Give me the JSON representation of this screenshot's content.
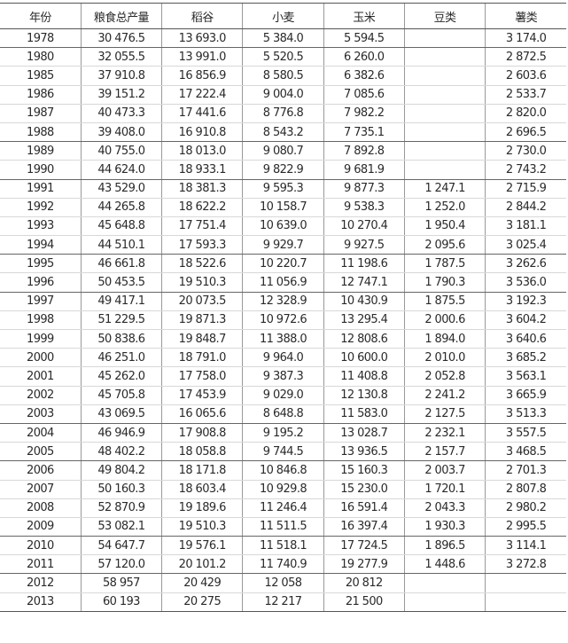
{
  "table": {
    "headers": [
      "年份",
      "粮食总产量",
      "稻谷",
      "小麦",
      "玉米",
      "豆类",
      "薯类"
    ],
    "rows": [
      [
        "1978",
        "30 476.5",
        "13 693.0",
        "5 384.0",
        "5 594.5",
        "",
        "3 174.0"
      ],
      [
        "1980",
        "32 055.5",
        "13 991.0",
        "5 520.5",
        "6 260.0",
        "",
        "2 872.5"
      ],
      [
        "1985",
        "37 910.8",
        "16 856.9",
        "8 580.5",
        "6 382.6",
        "",
        "2 603.6"
      ],
      [
        "1986",
        "39 151.2",
        "17 222.4",
        "9 004.0",
        "7 085.6",
        "",
        "2 533.7"
      ],
      [
        "1987",
        "40 473.3",
        "17 441.6",
        "8 776.8",
        "7 982.2",
        "",
        "2 820.0"
      ],
      [
        "1988",
        "39 408.0",
        "16 910.8",
        "8 543.2",
        "7 735.1",
        "",
        "2 696.5"
      ],
      [
        "1989",
        "40 755.0",
        "18 013.0",
        "9 080.7",
        "7 892.8",
        "",
        "2 730.0"
      ],
      [
        "1990",
        "44 624.0",
        "18 933.1",
        "9 822.9",
        "9 681.9",
        "",
        "2 743.2"
      ],
      [
        "1991",
        "43 529.0",
        "18 381.3",
        "9 595.3",
        "9 877.3",
        "1 247.1",
        "2 715.9"
      ],
      [
        "1992",
        "44 265.8",
        "18 622.2",
        "10 158.7",
        "9 538.3",
        "1 252.0",
        "2 844.2"
      ],
      [
        "1993",
        "45 648.8",
        "17 751.4",
        "10 639.0",
        "10 270.4",
        "1 950.4",
        "3 181.1"
      ],
      [
        "1994",
        "44 510.1",
        "17 593.3",
        "9 929.7",
        "9 927.5",
        "2 095.6",
        "3 025.4"
      ],
      [
        "1995",
        "46 661.8",
        "18 522.6",
        "10 220.7",
        "11 198.6",
        "1 787.5",
        "3 262.6"
      ],
      [
        "1996",
        "50 453.5",
        "19 510.3",
        "11 056.9",
        "12 747.1",
        "1 790.3",
        "3 536.0"
      ],
      [
        "1997",
        "49 417.1",
        "20 073.5",
        "12 328.9",
        "10 430.9",
        "1 875.5",
        "3 192.3"
      ],
      [
        "1998",
        "51 229.5",
        "19 871.3",
        "10 972.6",
        "13 295.4",
        "2 000.6",
        "3 604.2"
      ],
      [
        "1999",
        "50 838.6",
        "19 848.7",
        "11 388.0",
        "12 808.6",
        "1 894.0",
        "3 640.6"
      ],
      [
        "2000",
        "46 251.0",
        "18 791.0",
        "9 964.0",
        "10 600.0",
        "2 010.0",
        "3 685.2"
      ],
      [
        "2001",
        "45 262.0",
        "17 758.0",
        "9 387.3",
        "11 408.8",
        "2 052.8",
        "3 563.1"
      ],
      [
        "2002",
        "45 705.8",
        "17 453.9",
        "9 029.0",
        "12 130.8",
        "2 241.2",
        "3 665.9"
      ],
      [
        "2003",
        "43 069.5",
        "16 065.6",
        "8 648.8",
        "11 583.0",
        "2 127.5",
        "3 513.3"
      ],
      [
        "2004",
        "46 946.9",
        "17 908.8",
        "9 195.2",
        "13 028.7",
        "2 232.1",
        "3 557.5"
      ],
      [
        "2005",
        "48 402.2",
        "18 058.8",
        "9 744.5",
        "13 936.5",
        "2 157.7",
        "3 468.5"
      ],
      [
        "2006",
        "49 804.2",
        "18 171.8",
        "10 846.8",
        "15 160.3",
        "2 003.7",
        "2 701.3"
      ],
      [
        "2007",
        "50 160.3",
        "18 603.4",
        "10 929.8",
        "15 230.0",
        "1 720.1",
        "2 807.8"
      ],
      [
        "2008",
        "52 870.9",
        "19 189.6",
        "11 246.4",
        "16 591.4",
        "2 043.3",
        "2 980.2"
      ],
      [
        "2009",
        "53 082.1",
        "19 510.3",
        "11 511.5",
        "16 397.4",
        "1 930.3",
        "2 995.5"
      ],
      [
        "2010",
        "54 647.7",
        "19 576.1",
        "11 518.1",
        "17 724.5",
        "1 896.5",
        "3 114.1"
      ],
      [
        "2011",
        "57 120.0",
        "20 101.2",
        "11 740.9",
        "19 277.9",
        "1 448.6",
        "3 272.8"
      ],
      [
        "2012",
        "58 957",
        "20 429",
        "12 058",
        "20 812",
        "",
        ""
      ],
      [
        "2013",
        "60 193",
        "20 275",
        "12 217",
        "21 500",
        "",
        ""
      ]
    ]
  }
}
